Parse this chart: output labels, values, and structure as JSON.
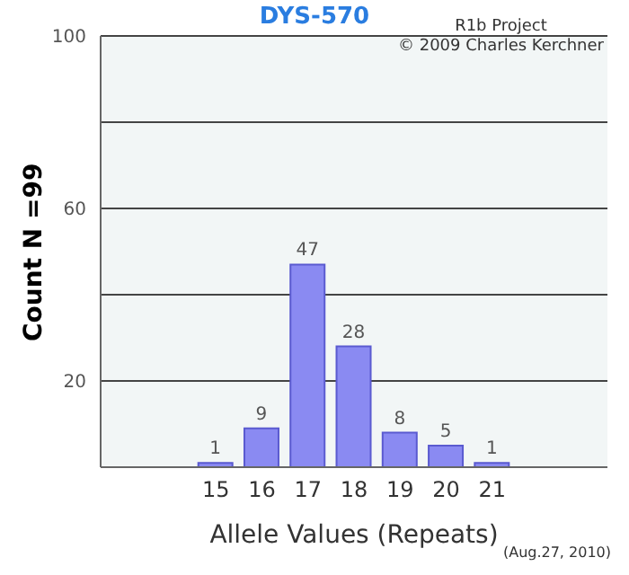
{
  "chart_data": {
    "type": "bar",
    "title": "DYS-570",
    "xlabel": "Allele Values (Repeats)",
    "ylabel": "Count N =99",
    "categories": [
      null,
      null,
      "15",
      "16",
      "17",
      "18",
      "19",
      "20",
      "21",
      null,
      null
    ],
    "values": [
      null,
      null,
      1,
      9,
      47,
      28,
      8,
      5,
      1,
      null,
      null
    ],
    "color": "#8a8af2",
    "data_labels": true,
    "ylim": [
      0,
      100
    ],
    "yticks": [
      {
        "value": 0,
        "label": null
      },
      20,
      {
        "value": 40,
        "label": null
      },
      60,
      {
        "value": 80,
        "label": null
      },
      100
    ],
    "grid": "y",
    "annotations": [
      "R1b Project",
      "© 2009 Charles Kerchner",
      "(Aug.27, 2010)"
    ]
  }
}
